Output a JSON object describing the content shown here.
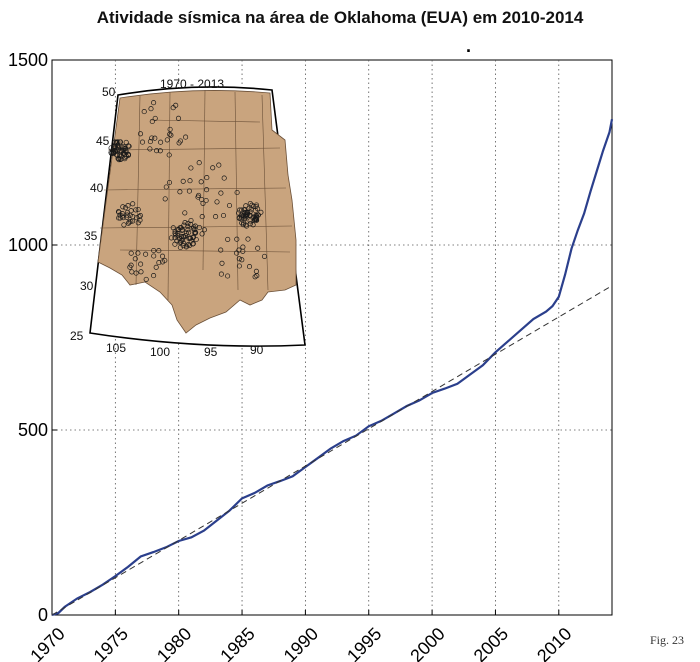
{
  "chart_data": {
    "type": "line",
    "title": "Atividade sísmica na área de Oklahoma (EUA) em 2010-2014",
    "xlabel": "",
    "ylabel": "",
    "xlim": [
      1970,
      2014.2
    ],
    "ylim": [
      0,
      1500
    ],
    "xticks": [
      1970,
      1975,
      1980,
      1985,
      1990,
      1995,
      2000,
      2005,
      2010
    ],
    "yticks": [
      0,
      500,
      1000,
      1500
    ],
    "grid": true,
    "series": [
      {
        "color": "#2b3f8c",
        "style": "solid",
        "x": [
          1970,
          1970.5,
          1971,
          1972,
          1973,
          1974,
          1975,
          1976,
          1977,
          1978,
          1979,
          1980,
          1981,
          1982,
          1983,
          1984,
          1985,
          1986,
          1987,
          1988,
          1989,
          1990,
          1991,
          1992,
          1993,
          1994,
          1995,
          1996,
          1997,
          1998,
          1999,
          2000,
          2001,
          2002,
          2003,
          2004,
          2005,
          2006,
          2007,
          2008,
          2009,
          2009.5,
          2010,
          2010.5,
          2011,
          2011.5,
          2012,
          2012.5,
          2013,
          2013.5,
          2014,
          2014.2
        ],
        "y": [
          0,
          5,
          22,
          45,
          62,
          82,
          105,
          130,
          158,
          170,
          183,
          200,
          210,
          228,
          255,
          282,
          315,
          330,
          350,
          362,
          375,
          400,
          425,
          450,
          470,
          485,
          510,
          525,
          545,
          565,
          580,
          600,
          612,
          625,
          650,
          675,
          710,
          740,
          770,
          800,
          820,
          835,
          860,
          920,
          990,
          1040,
          1085,
          1145,
          1200,
          1255,
          1305,
          1340
        ]
      },
      {
        "color": "#333333",
        "style": "dashed",
        "x": [
          1970,
          2014.2
        ],
        "y": [
          0,
          890
        ]
      }
    ]
  },
  "inset_map": {
    "title": "1970 - 2013",
    "lat_labels": [
      "50",
      "45",
      "40",
      "35",
      "30",
      "25"
    ],
    "lon_labels": [
      "105",
      "100",
      "95",
      "90"
    ],
    "land_color": "#c9a47e"
  },
  "caption": "Fig. 23",
  "marker": "."
}
